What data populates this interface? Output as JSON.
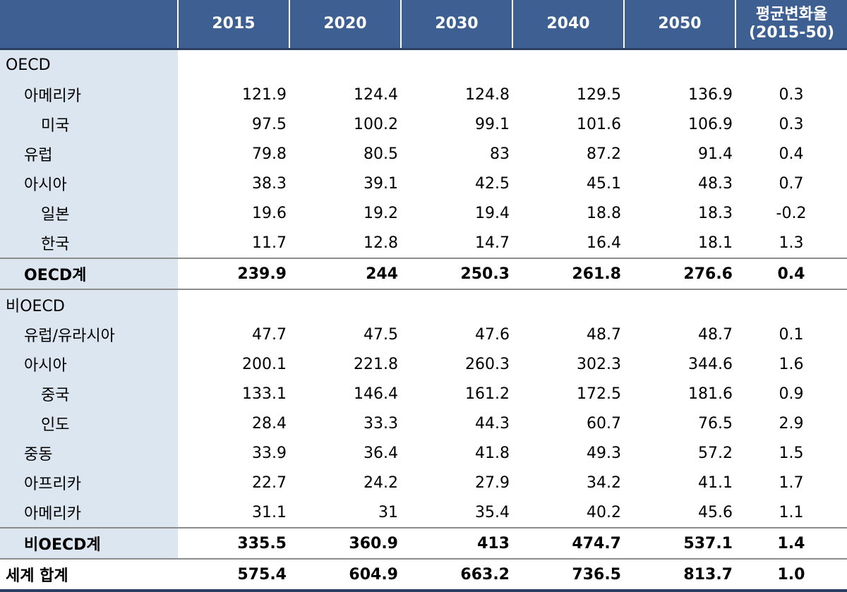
{
  "header": {
    "columns": [
      "2015",
      "2020",
      "2030",
      "2040",
      "2050"
    ],
    "avg_line1": "평균변화율",
    "avg_line2": "(2015-50)"
  },
  "rows": [
    {
      "label": "OECD",
      "values": [
        "",
        "",
        "",
        "",
        "",
        ""
      ]
    },
    {
      "label": "아메리카",
      "values": [
        "121.9",
        "124.4",
        "124.8",
        "129.5",
        "136.9",
        "0.3"
      ]
    },
    {
      "label": "미국",
      "values": [
        "97.5",
        "100.2",
        "99.1",
        "101.6",
        "106.9",
        "0.3"
      ]
    },
    {
      "label": "유럽",
      "values": [
        "79.8",
        "80.5",
        "83",
        "87.2",
        "91.4",
        "0.4"
      ]
    },
    {
      "label": "아시아",
      "values": [
        "38.3",
        "39.1",
        "42.5",
        "45.1",
        "48.3",
        "0.7"
      ]
    },
    {
      "label": "일본",
      "values": [
        "19.6",
        "19.2",
        "19.4",
        "18.8",
        "18.3",
        "-0.2"
      ]
    },
    {
      "label": "한국",
      "values": [
        "11.7",
        "12.8",
        "14.7",
        "16.4",
        "18.1",
        "1.3"
      ]
    },
    {
      "label": "OECD계",
      "values": [
        "239.9",
        "244",
        "250.3",
        "261.8",
        "276.6",
        "0.4"
      ]
    },
    {
      "label": "비OECD",
      "values": [
        "",
        "",
        "",
        "",
        "",
        ""
      ]
    },
    {
      "label": "유럽/유라시아",
      "values": [
        "47.7",
        "47.5",
        "47.6",
        "48.7",
        "48.7",
        "0.1"
      ]
    },
    {
      "label": "아시아",
      "values": [
        "200.1",
        "221.8",
        "260.3",
        "302.3",
        "344.6",
        "1.6"
      ]
    },
    {
      "label": "중국",
      "values": [
        "133.1",
        "146.4",
        "161.2",
        "172.5",
        "181.6",
        "0.9"
      ]
    },
    {
      "label": "인도",
      "values": [
        "28.4",
        "33.3",
        "44.3",
        "60.7",
        "76.5",
        "2.9"
      ]
    },
    {
      "label": "중동",
      "values": [
        "33.9",
        "36.4",
        "41.8",
        "49.3",
        "57.2",
        "1.5"
      ]
    },
    {
      "label": "아프리카",
      "values": [
        "22.7",
        "24.2",
        "27.9",
        "34.2",
        "41.1",
        "1.7"
      ]
    },
    {
      "label": "아메리카",
      "values": [
        "31.1",
        "31",
        "35.4",
        "40.2",
        "45.6",
        "1.1"
      ]
    },
    {
      "label": "비OECD계",
      "values": [
        "335.5",
        "360.9",
        "413",
        "474.7",
        "537.1",
        "1.4"
      ]
    },
    {
      "label": "세계 합계",
      "values": [
        "575.4",
        "604.9",
        "663.2",
        "736.5",
        "813.7",
        "1.0"
      ]
    }
  ]
}
